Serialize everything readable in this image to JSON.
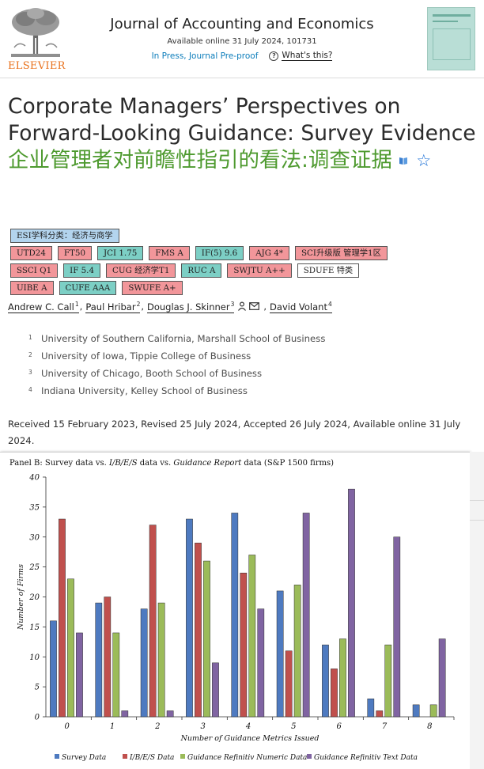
{
  "header": {
    "publisher": "ELSEVIER",
    "journal_name": "Journal of Accounting and Economics",
    "available": "Available online 31 July 2024, 101731",
    "status_link": "In Press, Journal Pre-proof",
    "whats_this": "What's this?",
    "question_icon": "?"
  },
  "article": {
    "title_en": "Corporate Managers’ Perspectives on Forward-Looking Guidance: Survey Evidence",
    "title_zh": "企业管理者对前瞻性指引的看法:调查证据",
    "star_icon": "☆"
  },
  "tags": [
    [
      {
        "label": "ESI学科分类：经济与商学",
        "color": "blue"
      }
    ],
    [
      {
        "label": "UTD24",
        "color": "red"
      },
      {
        "label": "FT50",
        "color": "red"
      },
      {
        "label": "JCI 1.75",
        "color": "teal"
      },
      {
        "label": "FMS A",
        "color": "red"
      },
      {
        "label": "IF(5) 9.6",
        "color": "teal"
      },
      {
        "label": "AJG 4*",
        "color": "red"
      },
      {
        "label": "SCI升级版 管理学1区",
        "color": "red"
      }
    ],
    [
      {
        "label": "SSCI Q1",
        "color": "red"
      },
      {
        "label": "IF 5.4",
        "color": "teal"
      },
      {
        "label": "CUG 经济学T1",
        "color": "red"
      },
      {
        "label": "RUC A",
        "color": "teal"
      },
      {
        "label": "SWJTU A++",
        "color": "red"
      },
      {
        "label": "SDUFE 特类",
        "color": "white"
      }
    ],
    [
      {
        "label": "UIBE A",
        "color": "red"
      },
      {
        "label": "CUFE AAA",
        "color": "teal"
      },
      {
        "label": "SWUFE A+",
        "color": "red"
      }
    ]
  ],
  "authors": [
    {
      "name": "Andrew C. Call",
      "sup": "1"
    },
    {
      "name": "Paul Hribar",
      "sup": "2"
    },
    {
      "name": "Douglas J. Skinner",
      "sup": "3"
    },
    {
      "name": "David Volant",
      "sup": "4"
    }
  ],
  "affiliations": [
    {
      "num": "1",
      "text": "University of Southern California, Marshall School of Business"
    },
    {
      "num": "2",
      "text": "University of Iowa, Tippie College of Business"
    },
    {
      "num": "3",
      "text": "University of Chicago, Booth School of Business"
    },
    {
      "num": "4",
      "text": "Indiana University, Kelley School of Business"
    }
  ],
  "received": "Received 15 February 2023, Revised 25 July 2024, Accepted 26 July 2024, Available online 31 July 2024.",
  "chart_data": {
    "type": "bar",
    "title_plain_1": "Panel B: Survey data vs. ",
    "title_italic_1": "I/B/E/S",
    "title_plain_2": " data vs. ",
    "title_italic_2": "Guidance Report",
    "title_plain_3": " data (S&P 1500 firms)",
    "xlabel": "Number of Guidance Metrics Issued",
    "ylabel": "Number of Firms",
    "ylim": [
      0,
      40
    ],
    "yticks": [
      0,
      5,
      10,
      15,
      20,
      25,
      30,
      35,
      40
    ],
    "categories": [
      "0",
      "1",
      "2",
      "3",
      "4",
      "5",
      "6",
      "7",
      "8"
    ],
    "series": [
      {
        "name": "Survey Data",
        "color": "#4e7ac0",
        "values": [
          16,
          19,
          18,
          33,
          34,
          21,
          12,
          3,
          2
        ]
      },
      {
        "name": "I/B/E/S Data",
        "color": "#c0504d",
        "values": [
          33,
          20,
          32,
          29,
          24,
          11,
          8,
          1,
          0
        ]
      },
      {
        "name": "Guidance Refinitiv Numeric Data",
        "color": "#9bbb59",
        "values": [
          23,
          14,
          19,
          26,
          27,
          22,
          13,
          12,
          2
        ]
      },
      {
        "name": "Guidance Refinitiv Text Data",
        "color": "#8064a2",
        "values": [
          14,
          1,
          1,
          9,
          18,
          34,
          38,
          30,
          13
        ]
      }
    ],
    "legend_position": "bottom",
    "grid": false
  }
}
